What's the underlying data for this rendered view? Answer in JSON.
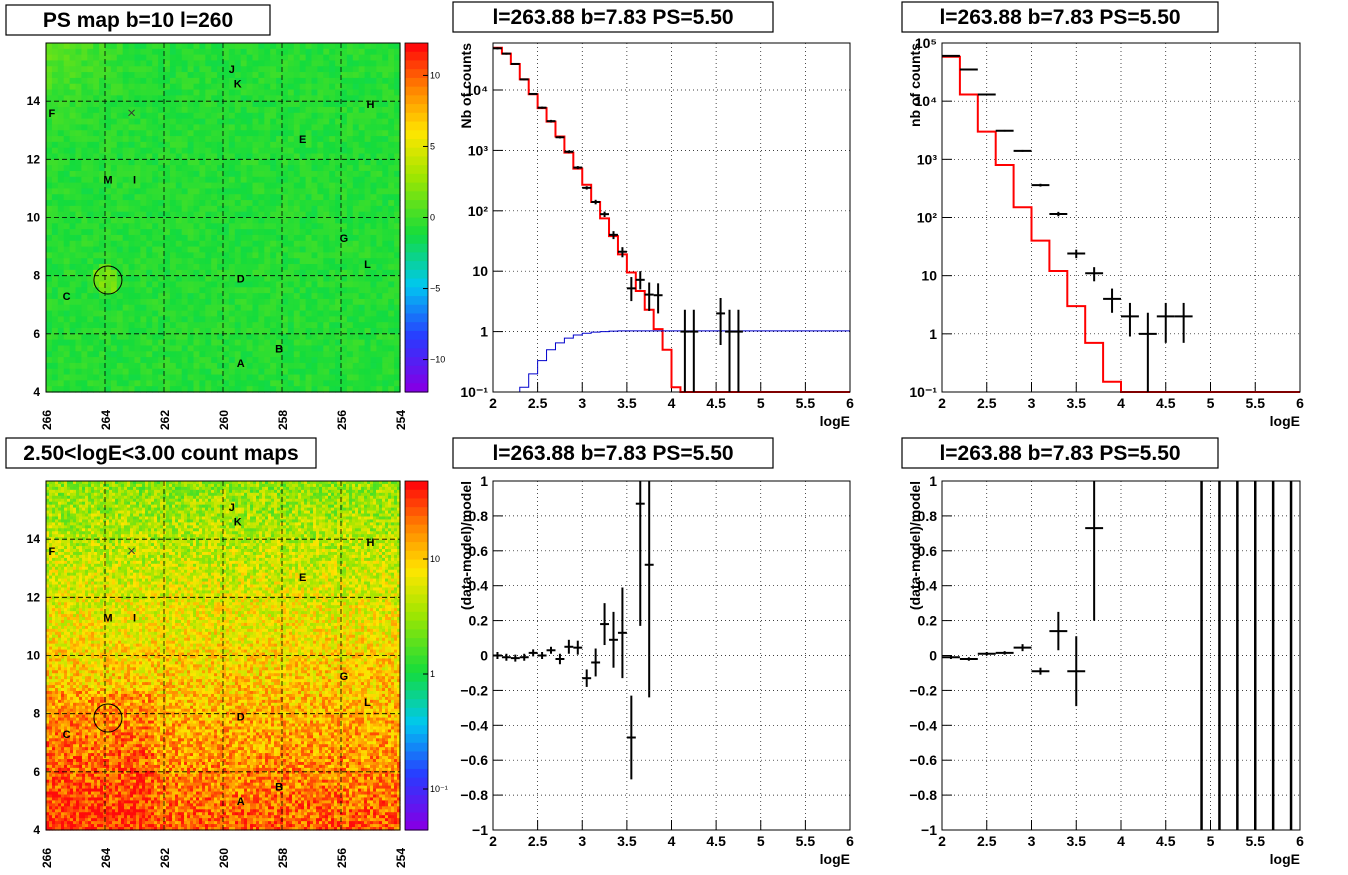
{
  "colors": {
    "frame": "#000000",
    "model_line": "#ff0000",
    "background_line": "#0000cc",
    "data_cross": "#000000",
    "map_base": "#33dd44"
  },
  "chart_data": [
    {
      "id": "ps-map",
      "type": "heatmap",
      "title": "PS map b=10 l=260",
      "xlabel": "",
      "ylabel": "",
      "xlim": [
        266,
        254
      ],
      "ylim": [
        4,
        16
      ],
      "x_ticks": [
        "266",
        "264",
        "262",
        "260",
        "258",
        "256",
        "254"
      ],
      "y_ticks": [
        "4",
        "6",
        "8",
        "10",
        "12",
        "14"
      ],
      "palette": "rainbow",
      "colorbar_ticks": [
        "10",
        "5",
        "0",
        "−5",
        "−10"
      ],
      "colorbar_range": [
        -12,
        12
      ],
      "grid": true,
      "marker_circle": {
        "l": 263.9,
        "b": 7.85
      },
      "marker_x": {
        "l": 263.1,
        "b": 13.6
      },
      "sources": [
        {
          "label": "J",
          "l": 259.7,
          "b": 15.1
        },
        {
          "label": "K",
          "l": 259.5,
          "b": 14.6
        },
        {
          "label": "H",
          "l": 255.0,
          "b": 13.9
        },
        {
          "label": "F",
          "l": 265.8,
          "b": 13.6
        },
        {
          "label": "E",
          "l": 257.3,
          "b": 12.7
        },
        {
          "label": "M",
          "l": 263.9,
          "b": 11.3
        },
        {
          "label": "I",
          "l": 263.0,
          "b": 11.3
        },
        {
          "label": "G",
          "l": 255.9,
          "b": 9.3
        },
        {
          "label": "L",
          "l": 255.1,
          "b": 8.4
        },
        {
          "label": "D",
          "l": 259.4,
          "b": 7.9
        },
        {
          "label": "C",
          "l": 265.3,
          "b": 7.3
        },
        {
          "label": "B",
          "l": 258.1,
          "b": 5.5
        },
        {
          "label": "A",
          "l": 259.4,
          "b": 5.0
        }
      ]
    },
    {
      "id": "spectrum-1",
      "type": "line",
      "title": "l=263.88 b=7.83 PS=5.50",
      "xlabel": "logE",
      "ylabel": "Nb of counts",
      "xlim": [
        2,
        6
      ],
      "ylim": [
        0.1,
        60000
      ],
      "yscale": "log",
      "x_ticks": [
        "2",
        "2.5",
        "3",
        "3.5",
        "4",
        "4.5",
        "5",
        "5.5",
        "6"
      ],
      "y_ticks": [
        {
          "v": 0.1,
          "t": "10⁻¹"
        },
        {
          "v": 1,
          "t": "1"
        },
        {
          "v": 10,
          "t": "10"
        },
        {
          "v": 100,
          "t": "10²"
        },
        {
          "v": 1000,
          "t": "10³"
        },
        {
          "v": 10000,
          "t": "10⁴"
        }
      ],
      "grid": true,
      "bin_edges": [
        2.0,
        2.1,
        2.2,
        2.3,
        2.4,
        2.5,
        2.6,
        2.7,
        2.8,
        2.9,
        3.0,
        3.1,
        3.2,
        3.3,
        3.4,
        3.5,
        3.6,
        3.7,
        3.8,
        3.9,
        4.0,
        4.1,
        4.2,
        4.3,
        4.4,
        4.5,
        4.6,
        4.7,
        4.8,
        4.9,
        5.0,
        5.1,
        5.2,
        5.3,
        5.4,
        5.5,
        5.6,
        5.7,
        5.8,
        5.9,
        6.0
      ],
      "series": [
        {
          "style": "model",
          "values": [
            50000,
            40000,
            27000,
            15000,
            8500,
            5000,
            3000,
            1700,
            920,
            500,
            270,
            140,
            75,
            38,
            19,
            9.5,
            4.7,
            2.3,
            1.1,
            0.5,
            0.12,
            0.1,
            0.1,
            0.1,
            0.1,
            0.1,
            0.1,
            0.1,
            0.1,
            0.1,
            0.1,
            0.1,
            0.1,
            0.1,
            0.1,
            0.1,
            0.1,
            0.1,
            0.1,
            0.1
          ]
        },
        {
          "style": "background",
          "values": [
            0.1,
            0.1,
            0.1,
            0.12,
            0.2,
            0.33,
            0.5,
            0.65,
            0.78,
            0.88,
            0.94,
            0.98,
            1.0,
            1.02,
            1.03,
            1.03,
            1.03,
            1.03,
            1.03,
            1.03,
            1.03,
            1.03,
            1.03,
            1.03,
            1.03,
            1.03,
            1.03,
            1.03,
            1.03,
            1.03,
            1.03,
            1.03,
            1.03,
            1.03,
            1.03,
            1.03,
            1.03,
            1.03,
            1.03,
            1.03
          ]
        },
        {
          "style": "data",
          "points": [
            {
              "x": 2.05,
              "y": 49000,
              "lo": 47000,
              "hi": 51000
            },
            {
              "x": 2.15,
              "y": 40000,
              "lo": 38500,
              "hi": 41500
            },
            {
              "x": 2.25,
              "y": 27000,
              "lo": 26000,
              "hi": 28000
            },
            {
              "x": 2.35,
              "y": 15000,
              "lo": 14500,
              "hi": 15500
            },
            {
              "x": 2.45,
              "y": 8600,
              "lo": 8300,
              "hi": 8900
            },
            {
              "x": 2.55,
              "y": 5100,
              "lo": 4900,
              "hi": 5300
            },
            {
              "x": 2.65,
              "y": 3050,
              "lo": 2900,
              "hi": 3200
            },
            {
              "x": 2.75,
              "y": 1650,
              "lo": 1580,
              "hi": 1720
            },
            {
              "x": 2.85,
              "y": 950,
              "lo": 900,
              "hi": 1000
            },
            {
              "x": 2.95,
              "y": 520,
              "lo": 490,
              "hi": 550
            },
            {
              "x": 3.05,
              "y": 240,
              "lo": 225,
              "hi": 255
            },
            {
              "x": 3.15,
              "y": 140,
              "lo": 128,
              "hi": 152
            },
            {
              "x": 3.25,
              "y": 88,
              "lo": 79,
              "hi": 97
            },
            {
              "x": 3.35,
              "y": 40,
              "lo": 34,
              "hi": 46
            },
            {
              "x": 3.45,
              "y": 21,
              "lo": 17,
              "hi": 25
            },
            {
              "x": 3.55,
              "y": 5.2,
              "lo": 3.2,
              "hi": 8
            },
            {
              "x": 3.65,
              "y": 7.2,
              "lo": 5,
              "hi": 10
            },
            {
              "x": 3.75,
              "y": 4.1,
              "lo": 2.2,
              "hi": 6.5
            },
            {
              "x": 3.85,
              "y": 4,
              "lo": 2,
              "hi": 6.3
            },
            {
              "x": 4.15,
              "y": 1,
              "lo": 0.1,
              "hi": 2.3
            },
            {
              "x": 4.25,
              "y": 1,
              "lo": 0.1,
              "hi": 2.3
            },
            {
              "x": 4.55,
              "y": 2,
              "lo": 0.6,
              "hi": 3.6
            },
            {
              "x": 4.65,
              "y": 1,
              "lo": 0.1,
              "hi": 2.3
            },
            {
              "x": 4.75,
              "y": 1,
              "lo": 0.1,
              "hi": 2.3
            }
          ]
        }
      ]
    },
    {
      "id": "spectrum-2",
      "type": "line",
      "title": "l=263.88 b=7.83 PS=5.50",
      "xlabel": "logE",
      "ylabel": "nb of counts",
      "xlim": [
        2,
        6
      ],
      "ylim": [
        0.1,
        100000
      ],
      "yscale": "log",
      "x_ticks": [
        "2",
        "2.5",
        "3",
        "3.5",
        "4",
        "4.5",
        "5",
        "5.5",
        "6"
      ],
      "y_ticks": [
        {
          "v": 0.1,
          "t": "10⁻¹"
        },
        {
          "v": 1,
          "t": "1"
        },
        {
          "v": 10,
          "t": "10"
        },
        {
          "v": 100,
          "t": "10²"
        },
        {
          "v": 1000,
          "t": "10³"
        },
        {
          "v": 10000,
          "t": "10⁴"
        },
        {
          "v": 100000,
          "t": "10⁵"
        }
      ],
      "grid": true,
      "bin_edges": [
        2.0,
        2.2,
        2.4,
        2.6,
        2.8,
        3.0,
        3.2,
        3.4,
        3.6,
        3.8,
        4.0,
        4.2,
        4.4,
        4.6,
        4.8,
        5.0,
        5.2,
        5.4,
        5.6,
        5.8,
        6.0
      ],
      "series": [
        {
          "style": "model",
          "values": [
            58000,
            13000,
            3000,
            800,
            150,
            40,
            12,
            3,
            0.7,
            0.15,
            0.1,
            0.1,
            0.1,
            0.1,
            0.1,
            0.1,
            0.1,
            0.1,
            0.1,
            0.1
          ]
        },
        {
          "style": "data",
          "points": [
            {
              "x": 2.1,
              "y": 60000,
              "lo": 59000,
              "hi": 61000
            },
            {
              "x": 2.3,
              "y": 35000,
              "lo": 34000,
              "hi": 36000
            },
            {
              "x": 2.5,
              "y": 13000,
              "lo": 12700,
              "hi": 13300
            },
            {
              "x": 2.7,
              "y": 3100,
              "lo": 3000,
              "hi": 3200
            },
            {
              "x": 2.9,
              "y": 1400,
              "lo": 1350,
              "hi": 1450
            },
            {
              "x": 3.1,
              "y": 360,
              "lo": 340,
              "hi": 380
            },
            {
              "x": 3.3,
              "y": 115,
              "lo": 105,
              "hi": 125
            },
            {
              "x": 3.5,
              "y": 24,
              "lo": 20,
              "hi": 28
            },
            {
              "x": 3.7,
              "y": 11,
              "lo": 8,
              "hi": 14
            },
            {
              "x": 3.9,
              "y": 4,
              "lo": 2.3,
              "hi": 6
            },
            {
              "x": 4.1,
              "y": 2,
              "lo": 0.9,
              "hi": 3.4
            },
            {
              "x": 4.3,
              "y": 1,
              "lo": 0.1,
              "hi": 2.3
            },
            {
              "x": 4.5,
              "y": 2,
              "lo": 0.7,
              "hi": 3.4
            },
            {
              "x": 4.7,
              "y": 2,
              "lo": 0.7,
              "hi": 3.4
            }
          ]
        }
      ]
    },
    {
      "id": "count-map",
      "type": "heatmap",
      "title": "2.50<logE<3.00 count maps",
      "xlabel": "",
      "ylabel": "",
      "xlim": [
        266,
        254
      ],
      "ylim": [
        4,
        16
      ],
      "x_ticks": [
        "266",
        "264",
        "262",
        "260",
        "258",
        "256",
        "254"
      ],
      "y_ticks": [
        "4",
        "6",
        "8",
        "10",
        "12",
        "14"
      ],
      "palette": "rainbow",
      "colorbar_ticks": [
        "10",
        "1",
        "10⁻¹"
      ],
      "grid": true,
      "marker_circle": {
        "l": 263.9,
        "b": 7.85
      },
      "marker_x": {
        "l": 263.1,
        "b": 13.6
      },
      "sources": [
        {
          "label": "J",
          "l": 259.7,
          "b": 15.1
        },
        {
          "label": "K",
          "l": 259.5,
          "b": 14.6
        },
        {
          "label": "H",
          "l": 255.0,
          "b": 13.9
        },
        {
          "label": "F",
          "l": 265.8,
          "b": 13.6
        },
        {
          "label": "E",
          "l": 257.3,
          "b": 12.7
        },
        {
          "label": "M",
          "l": 263.9,
          "b": 11.3
        },
        {
          "label": "I",
          "l": 263.0,
          "b": 11.3
        },
        {
          "label": "G",
          "l": 255.9,
          "b": 9.3
        },
        {
          "label": "L",
          "l": 255.1,
          "b": 8.4
        },
        {
          "label": "D",
          "l": 259.4,
          "b": 7.9
        },
        {
          "label": "C",
          "l": 265.3,
          "b": 7.3
        },
        {
          "label": "B",
          "l": 258.1,
          "b": 5.5
        },
        {
          "label": "A",
          "l": 259.4,
          "b": 5.0
        }
      ]
    },
    {
      "id": "residual-1",
      "type": "scatter",
      "title": "l=263.88 b=7.83 PS=5.50",
      "xlabel": "logE",
      "ylabel": "(data-model)/model",
      "xlim": [
        2,
        6
      ],
      "ylim": [
        -1,
        1
      ],
      "x_ticks": [
        "2",
        "2.5",
        "3",
        "3.5",
        "4",
        "4.5",
        "5",
        "5.5",
        "6"
      ],
      "y_ticks": [
        "−1",
        "−0.8",
        "−0.6",
        "−0.4",
        "−0.2",
        "0",
        "0.2",
        "0.4",
        "0.6",
        "0.8",
        "1"
      ],
      "grid": true,
      "points": [
        {
          "x": 2.05,
          "y": 0.0,
          "xe": 0.05,
          "ye": 0.02
        },
        {
          "x": 2.15,
          "y": -0.01,
          "xe": 0.05,
          "ye": 0.02
        },
        {
          "x": 2.25,
          "y": -0.015,
          "xe": 0.05,
          "ye": 0.02
        },
        {
          "x": 2.35,
          "y": -0.01,
          "xe": 0.05,
          "ye": 0.02
        },
        {
          "x": 2.45,
          "y": 0.015,
          "xe": 0.05,
          "ye": 0.02
        },
        {
          "x": 2.55,
          "y": 0.0,
          "xe": 0.05,
          "ye": 0.02
        },
        {
          "x": 2.65,
          "y": 0.03,
          "xe": 0.05,
          "ye": 0.02
        },
        {
          "x": 2.75,
          "y": -0.02,
          "xe": 0.05,
          "ye": 0.03
        },
        {
          "x": 2.85,
          "y": 0.05,
          "xe": 0.05,
          "ye": 0.04
        },
        {
          "x": 2.95,
          "y": 0.045,
          "xe": 0.05,
          "ye": 0.04
        },
        {
          "x": 3.05,
          "y": -0.13,
          "xe": 0.05,
          "ye": 0.05
        },
        {
          "x": 3.15,
          "y": -0.04,
          "xe": 0.05,
          "ye": 0.08
        },
        {
          "x": 3.25,
          "y": 0.18,
          "xe": 0.05,
          "ye": 0.12
        },
        {
          "x": 3.35,
          "y": 0.09,
          "xe": 0.05,
          "ye": 0.16
        },
        {
          "x": 3.45,
          "y": 0.13,
          "xe": 0.05,
          "ye": 0.26
        },
        {
          "x": 3.55,
          "y": -0.47,
          "xe": 0.05,
          "ye": 0.24
        },
        {
          "x": 3.65,
          "y": 0.87,
          "xe": 0.05,
          "ye": 0.7
        },
        {
          "x": 3.75,
          "y": 0.52,
          "xe": 0.05,
          "ye": 0.76
        }
      ]
    },
    {
      "id": "residual-2",
      "type": "scatter",
      "title": "l=263.88 b=7.83 PS=5.50",
      "xlabel": "logE",
      "ylabel": "(data-model)/model",
      "xlim": [
        2,
        6
      ],
      "ylim": [
        -1,
        1
      ],
      "x_ticks": [
        "2",
        "2.5",
        "3",
        "3.5",
        "4",
        "4.5",
        "5",
        "5.5",
        "6"
      ],
      "y_ticks": [
        "−1",
        "−0.8",
        "−0.6",
        "−0.4",
        "−0.2",
        "0",
        "0.2",
        "0.4",
        "0.6",
        "0.8",
        "1"
      ],
      "grid": true,
      "points": [
        {
          "x": 2.1,
          "y": -0.01,
          "xe": 0.1,
          "ye": 0.01
        },
        {
          "x": 2.3,
          "y": -0.02,
          "xe": 0.1,
          "ye": 0.01
        },
        {
          "x": 2.5,
          "y": 0.01,
          "xe": 0.1,
          "ye": 0.01
        },
        {
          "x": 2.7,
          "y": 0.015,
          "xe": 0.1,
          "ye": 0.01
        },
        {
          "x": 2.9,
          "y": 0.045,
          "xe": 0.1,
          "ye": 0.02
        },
        {
          "x": 3.1,
          "y": -0.09,
          "xe": 0.1,
          "ye": 0.02
        },
        {
          "x": 3.3,
          "y": 0.14,
          "xe": 0.1,
          "ye": 0.11
        },
        {
          "x": 3.5,
          "y": -0.09,
          "xe": 0.1,
          "ye": 0.2
        },
        {
          "x": 3.7,
          "y": 0.73,
          "xe": 0.1,
          "ye": 0.53
        }
      ],
      "vertical_bars": [
        4.9,
        5.1,
        5.3,
        5.5,
        5.7,
        5.9
      ]
    }
  ]
}
